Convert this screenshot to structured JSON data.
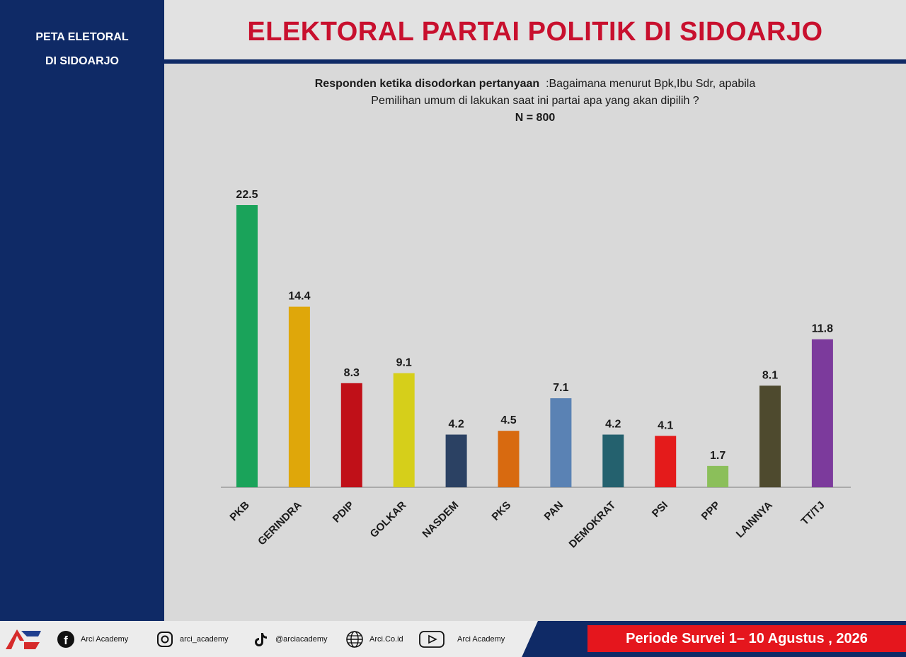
{
  "sidebar": {
    "title_line1": "PETA ELETORAL",
    "title_line2": "DI SIDOARJO"
  },
  "header": {
    "title": "ELEKTORAL PARTAI POLITIK DI SIDOARJO"
  },
  "question": {
    "lead": "Responden ketika disodorkan pertanyaan",
    "text_line1": ":Bagaimana menurut Bpk,Ibu Sdr, apabila",
    "text_line2": "Pemilihan umum di lakukan saat ini partai apa yang akan dipilih  ?",
    "n": "N = 800"
  },
  "chart_data": {
    "type": "bar",
    "categories": [
      "PKB",
      "GERINDRA",
      "PDIP",
      "GOLKAR",
      "NASDEM",
      "PKS",
      "PAN",
      "DEMOKRAT",
      "PSI",
      "PPP",
      "LAINNYA",
      "TT/TJ"
    ],
    "values": [
      22.5,
      14.4,
      8.3,
      9.1,
      4.2,
      4.5,
      7.1,
      4.2,
      4.1,
      1.7,
      8.1,
      11.8
    ],
    "value_labels": [
      "22.5",
      "14.4",
      "8.3",
      "9.1",
      "4.2",
      "4.5",
      "7.1",
      "4.2",
      "4.1",
      "1.7",
      "8.1",
      "11.8"
    ],
    "colors": [
      "#1aa35a",
      "#dfa70a",
      "#c01018",
      "#d6cf1a",
      "#2b4163",
      "#d86a10",
      "#5a82b4",
      "#24616e",
      "#e41b1b",
      "#8bbf5a",
      "#4e4a2e",
      "#7c3a9c"
    ],
    "ylim": [
      0,
      22.5
    ],
    "grid": false,
    "legend": "none"
  },
  "footer": {
    "facebook": "Arci  Academy",
    "instagram": "arci_academy",
    "tiktok": "@arciacademy",
    "website": "Arci.Co.id",
    "youtube": "Arci  Academy",
    "period": "Periode Survei  1– 10 Agustus , 2026",
    "icons": [
      "facebook-icon",
      "instagram-icon",
      "tiktok-icon",
      "globe-icon",
      "youtube-icon"
    ]
  }
}
